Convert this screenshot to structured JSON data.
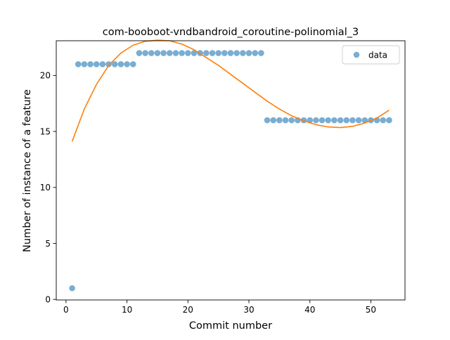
{
  "chart_data": {
    "type": "scatter",
    "title": "com-booboot-vndbandroid_coroutine-polinomial_3",
    "xlabel": "Commit number",
    "ylabel": "Number of instance of a feature",
    "xlim": [
      -1.6,
      55.6
    ],
    "ylim": [
      -0.05,
      23.1
    ],
    "xticks": [
      0,
      10,
      20,
      30,
      40,
      50
    ],
    "yticks": [
      0,
      5,
      10,
      15,
      20
    ],
    "grid": false,
    "legend": {
      "placement": "top-right",
      "entries": [
        "data"
      ]
    },
    "series": [
      {
        "name": "data",
        "kind": "scatter",
        "color": "#1f77b4",
        "x": [
          1,
          2,
          3,
          4,
          5,
          6,
          7,
          8,
          9,
          10,
          11,
          12,
          13,
          14,
          15,
          16,
          17,
          18,
          19,
          20,
          21,
          22,
          23,
          24,
          25,
          26,
          27,
          28,
          29,
          30,
          31,
          32,
          33,
          34,
          35,
          36,
          37,
          38,
          39,
          40,
          41,
          42,
          43,
          44,
          45,
          46,
          47,
          48,
          49,
          50,
          51,
          52,
          53
        ],
        "y": [
          1,
          21,
          21,
          21,
          21,
          21,
          21,
          21,
          21,
          21,
          21,
          22,
          22,
          22,
          22,
          22,
          22,
          22,
          22,
          22,
          22,
          22,
          22,
          22,
          22,
          22,
          22,
          22,
          22,
          22,
          22,
          22,
          16,
          16,
          16,
          16,
          16,
          16,
          16,
          16,
          16,
          16,
          16,
          16,
          16,
          16,
          16,
          16,
          16,
          16,
          16,
          16,
          16
        ]
      },
      {
        "kind": "line",
        "color": "#ff7f0e",
        "x": [
          1,
          3,
          5,
          7,
          9,
          11,
          13,
          15,
          17,
          19,
          21,
          23,
          25,
          27,
          29,
          31,
          33,
          35,
          37,
          39,
          41,
          43,
          45,
          47,
          49,
          51,
          53
        ],
        "y": [
          14.1,
          17.0,
          19.2,
          20.9,
          22.0,
          22.7,
          23.05,
          23.15,
          23.1,
          22.8,
          22.3,
          21.6,
          20.9,
          20.1,
          19.3,
          18.5,
          17.7,
          17.0,
          16.4,
          15.95,
          15.6,
          15.4,
          15.35,
          15.45,
          15.75,
          16.2,
          16.9
        ]
      }
    ]
  }
}
